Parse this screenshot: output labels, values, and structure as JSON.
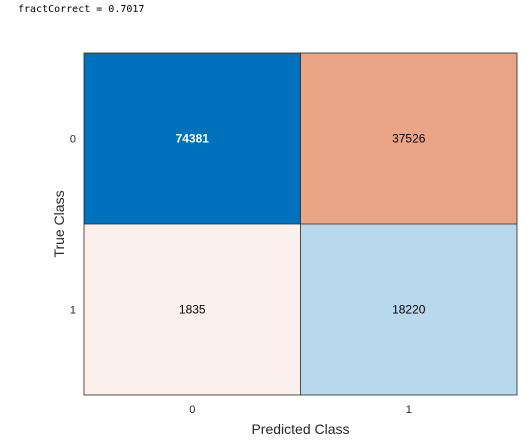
{
  "console": {
    "output_line": "fractCorrect = 0.7017"
  },
  "chart_data": {
    "type": "heatmap",
    "subtype": "confusion-matrix",
    "title": "",
    "xlabel": "Predicted Class",
    "ylabel": "True Class",
    "x_categories": [
      "0",
      "1"
    ],
    "y_categories": [
      "0",
      "1"
    ],
    "values": [
      [
        74381,
        37526
      ],
      [
        1835,
        18220
      ]
    ],
    "cell_colors": [
      [
        "#0072bd",
        "#eaa586"
      ],
      [
        "#fbf0eb",
        "#b8d8eb"
      ]
    ],
    "cell_text_colors": [
      [
        "#ffffff",
        "#000000"
      ],
      [
        "#000000",
        "#000000"
      ]
    ],
    "grid_color": "#262626"
  }
}
